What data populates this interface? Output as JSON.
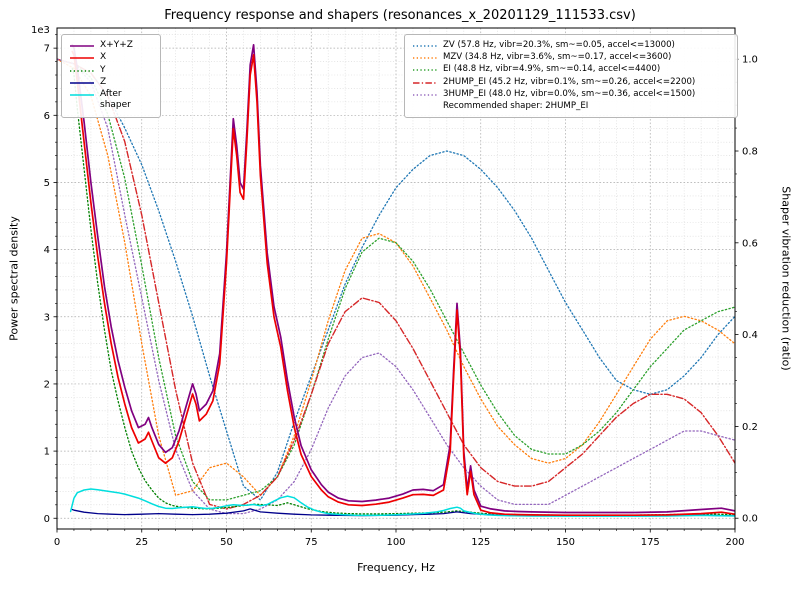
{
  "title": "Frequency response and shapers (resonances_x_20201129_111533.csv)",
  "axes": {
    "xlabel": "Frequency, Hz",
    "ylabel_left": "Power spectral density",
    "ylabel_right": "Shaper vibration reduction (ratio)",
    "offset_text": "1e3",
    "x_ticks": [
      "0",
      "25",
      "50",
      "75",
      "100",
      "125",
      "150",
      "175",
      "200"
    ],
    "y_left_ticks": [
      "0",
      "1",
      "2",
      "3",
      "4",
      "5",
      "6",
      "7"
    ],
    "y_right_ticks": [
      "0.0",
      "0.2",
      "0.4",
      "0.6",
      "0.8",
      "1.0"
    ]
  },
  "chart_data": {
    "type": "line",
    "title": "Frequency response and shapers (resonances_x_20201129_111533.csv)",
    "xlabel": "Frequency, Hz",
    "ylabel_left": "Power spectral density",
    "ylabel_right": "Shaper vibration reduction (ratio)",
    "xlim": [
      0,
      200
    ],
    "ylim_left": [
      0,
      7000
    ],
    "ylim_right": [
      0,
      1.0
    ],
    "x_major_step": 25,
    "x_minor_step": 5,
    "y_left_major": 1000,
    "y_left_minor": 200,
    "grid": "both",
    "legend_psd_position": "upper-left",
    "legend_shapers_position": "upper-right",
    "recommended_note": "Recommended shaper: 2HUMP_EI",
    "psd_series": [
      {
        "name": "xyz",
        "label": "X+Y+Z",
        "color": "#800080",
        "dash": "solid",
        "lw": 1.7,
        "x": [
          4.5,
          5,
          6,
          8,
          10,
          12,
          14,
          16,
          18,
          20,
          22,
          24,
          26,
          27,
          28,
          30,
          32,
          34,
          36,
          38,
          40,
          41,
          42,
          44,
          46,
          48,
          50,
          51,
          52,
          53,
          54,
          55,
          56,
          57,
          58,
          59,
          60,
          62,
          64,
          66,
          68,
          70,
          72,
          75,
          78,
          80,
          83,
          86,
          90,
          94,
          98,
          102,
          105,
          108,
          111,
          114,
          116,
          117,
          118,
          119,
          120,
          121,
          122,
          123,
          125,
          128,
          132,
          136,
          140,
          150,
          160,
          170,
          180,
          190,
          196,
          200
        ],
        "y": [
          7050,
          7000,
          6700,
          5900,
          5000,
          4200,
          3450,
          2850,
          2350,
          1950,
          1600,
          1350,
          1400,
          1500,
          1350,
          1100,
          980,
          1050,
          1300,
          1650,
          2000,
          1850,
          1600,
          1700,
          1900,
          2450,
          3950,
          4950,
          5950,
          5550,
          5000,
          4900,
          5750,
          6750,
          7050,
          6350,
          5250,
          3950,
          3150,
          2700,
          2050,
          1500,
          1080,
          720,
          500,
          390,
          300,
          260,
          250,
          270,
          300,
          360,
          420,
          430,
          410,
          500,
          1100,
          2200,
          3200,
          2500,
          1000,
          420,
          780,
          420,
          180,
          140,
          110,
          100,
          95,
          85,
          85,
          85,
          95,
          130,
          150,
          110
        ]
      },
      {
        "name": "x",
        "label": "X",
        "color": "#ee0000",
        "dash": "solid",
        "lw": 1.7,
        "x": [
          4.5,
          5,
          6,
          8,
          10,
          12,
          14,
          16,
          18,
          20,
          22,
          24,
          26,
          27,
          28,
          30,
          32,
          34,
          36,
          38,
          40,
          41,
          42,
          44,
          46,
          48,
          50,
          51,
          52,
          53,
          54,
          55,
          56,
          57,
          58,
          59,
          60,
          62,
          64,
          66,
          68,
          70,
          72,
          75,
          78,
          80,
          83,
          86,
          90,
          94,
          98,
          102,
          105,
          108,
          111,
          114,
          116,
          117,
          118,
          119,
          120,
          121,
          122,
          123,
          125,
          128,
          132,
          136,
          140,
          150,
          160,
          170,
          180,
          190,
          196,
          200
        ],
        "y": [
          6950,
          6900,
          6500,
          5600,
          4700,
          3900,
          3200,
          2600,
          2100,
          1700,
          1350,
          1120,
          1180,
          1280,
          1150,
          900,
          820,
          900,
          1150,
          1500,
          1850,
          1700,
          1450,
          1550,
          1750,
          2300,
          3800,
          4800,
          5800,
          5400,
          4850,
          4750,
          5600,
          6600,
          6900,
          6200,
          5100,
          3800,
          3000,
          2550,
          1900,
          1350,
          950,
          620,
          420,
          320,
          240,
          200,
          190,
          210,
          240,
          300,
          350,
          355,
          340,
          420,
          1000,
          2100,
          3100,
          2400,
          900,
          350,
          700,
          350,
          120,
          80,
          60,
          55,
          50,
          45,
          45,
          45,
          50,
          70,
          90,
          60
        ]
      },
      {
        "name": "y",
        "label": "Y",
        "color": "#008000",
        "dash": "dotted",
        "lw": 1.3,
        "x": [
          4.5,
          5,
          6,
          8,
          10,
          12,
          14,
          16,
          18,
          20,
          22,
          24,
          26,
          28,
          30,
          32,
          34,
          36,
          38,
          40,
          44,
          48,
          52,
          55,
          58,
          62,
          65,
          68,
          70,
          74,
          78,
          82,
          86,
          90,
          95,
          100,
          105,
          110,
          114,
          118,
          122,
          126,
          130,
          140,
          150,
          160,
          170,
          180,
          190,
          200
        ],
        "y": [
          6700,
          6600,
          6100,
          5200,
          4300,
          3500,
          2800,
          2200,
          1750,
          1350,
          1000,
          750,
          560,
          420,
          300,
          230,
          190,
          170,
          160,
          150,
          140,
          150,
          170,
          190,
          210,
          200,
          190,
          230,
          200,
          140,
          100,
          80,
          70,
          65,
          65,
          70,
          75,
          80,
          90,
          110,
          90,
          70,
          60,
          50,
          45,
          45,
          45,
          55,
          65,
          55
        ]
      },
      {
        "name": "z",
        "label": "Z",
        "color": "#00008b",
        "dash": "solid",
        "lw": 1.3,
        "x": [
          4.5,
          5,
          8,
          12,
          16,
          20,
          25,
          30,
          35,
          40,
          45,
          50,
          55,
          57,
          60,
          65,
          70,
          75,
          80,
          90,
          100,
          105,
          110,
          114,
          118,
          122,
          130,
          140,
          150,
          160,
          170,
          180,
          190,
          200
        ],
        "y": [
          130,
          120,
          90,
          70,
          60,
          55,
          60,
          70,
          60,
          55,
          60,
          75,
          110,
          140,
          95,
          75,
          60,
          50,
          45,
          40,
          45,
          55,
          60,
          70,
          95,
          70,
          45,
          35,
          35,
          35,
          35,
          35,
          45,
          35
        ]
      },
      {
        "name": "after_shaper",
        "label": "After shaper",
        "color": "#00dede",
        "dash": "solid",
        "lw": 1.5,
        "x": [
          4,
          5,
          6,
          8,
          10,
          12,
          14,
          16,
          18,
          20,
          22,
          24,
          26,
          28,
          30,
          32,
          34,
          36,
          38,
          40,
          42,
          44,
          46,
          48,
          50,
          52,
          54,
          56,
          58,
          60,
          62,
          64,
          66,
          68,
          70,
          72,
          74,
          76,
          78,
          80,
          84,
          88,
          92,
          96,
          100,
          104,
          108,
          112,
          114,
          116,
          118,
          119,
          120,
          122,
          124,
          127,
          130,
          135,
          140,
          150,
          160,
          170,
          180,
          190,
          200
        ],
        "y": [
          100,
          300,
          380,
          420,
          435,
          425,
          410,
          395,
          380,
          360,
          330,
          300,
          260,
          215,
          175,
          150,
          145,
          155,
          165,
          170,
          155,
          145,
          150,
          165,
          185,
          200,
          195,
          195,
          205,
          185,
          205,
          255,
          305,
          330,
          305,
          230,
          165,
          120,
          90,
          70,
          55,
          45,
          42,
          45,
          52,
          62,
          72,
          95,
          115,
          145,
          165,
          150,
          110,
          85,
          65,
          50,
          42,
          36,
          33,
          32,
          32,
          32,
          33,
          42,
          33
        ]
      }
    ],
    "shaper_x": [
      0,
      5,
      10,
      15,
      20,
      25,
      30,
      35,
      40,
      45,
      50,
      55,
      60,
      65,
      70,
      75,
      80,
      85,
      90,
      95,
      100,
      105,
      110,
      115,
      120,
      125,
      130,
      135,
      140,
      145,
      150,
      155,
      160,
      165,
      170,
      175,
      180,
      185,
      190,
      195,
      200
    ],
    "shaper_series": [
      {
        "name": "ZV",
        "label": "ZV (57.8 Hz, vibr=20.3%, sm~=0.05, accel<=13000)",
        "color": "#1f77b4",
        "dash": "dotted",
        "lw": 1.3,
        "values": [
          1.0,
          0.99,
          0.97,
          0.92,
          0.85,
          0.77,
          0.67,
          0.56,
          0.44,
          0.31,
          0.19,
          0.07,
          0.04,
          0.1,
          0.21,
          0.31,
          0.41,
          0.51,
          0.59,
          0.66,
          0.72,
          0.76,
          0.79,
          0.8,
          0.79,
          0.76,
          0.72,
          0.67,
          0.61,
          0.54,
          0.47,
          0.41,
          0.35,
          0.3,
          0.28,
          0.27,
          0.28,
          0.31,
          0.35,
          0.4,
          0.44
        ]
      },
      {
        "name": "MZV",
        "label": "MZV (34.8 Hz, vibr=3.6%, sm~=0.17, accel<=3600)",
        "color": "#ff7f0e",
        "dash": "dotted",
        "lw": 1.3,
        "values": [
          1.0,
          0.98,
          0.92,
          0.79,
          0.6,
          0.38,
          0.18,
          0.05,
          0.06,
          0.11,
          0.12,
          0.09,
          0.05,
          0.09,
          0.18,
          0.3,
          0.43,
          0.54,
          0.61,
          0.62,
          0.6,
          0.55,
          0.48,
          0.41,
          0.33,
          0.26,
          0.2,
          0.16,
          0.13,
          0.12,
          0.13,
          0.16,
          0.21,
          0.27,
          0.33,
          0.39,
          0.43,
          0.44,
          0.43,
          0.41,
          0.38
        ]
      },
      {
        "name": "EI",
        "label": "EI (48.8 Hz, vibr=4.9%, sm~=0.14, accel<=4400)",
        "color": "#2ca02c",
        "dash": "dotted",
        "lw": 1.3,
        "values": [
          1.0,
          0.99,
          0.96,
          0.88,
          0.74,
          0.55,
          0.35,
          0.18,
          0.08,
          0.04,
          0.04,
          0.05,
          0.06,
          0.09,
          0.16,
          0.27,
          0.39,
          0.5,
          0.58,
          0.61,
          0.6,
          0.56,
          0.5,
          0.43,
          0.36,
          0.29,
          0.23,
          0.18,
          0.15,
          0.14,
          0.14,
          0.16,
          0.19,
          0.23,
          0.28,
          0.33,
          0.37,
          0.41,
          0.43,
          0.45,
          0.46
        ]
      },
      {
        "name": "2HUMP_EI",
        "label": "2HUMP_EI (45.2 Hz, vibr=0.1%, sm~=0.26, accel<=2200)",
        "color": "#d62728",
        "dash": "dashdot",
        "lw": 1.4,
        "values": [
          1.0,
          0.99,
          0.97,
          0.92,
          0.82,
          0.66,
          0.47,
          0.28,
          0.12,
          0.03,
          0.02,
          0.03,
          0.05,
          0.09,
          0.17,
          0.27,
          0.38,
          0.45,
          0.48,
          0.47,
          0.43,
          0.37,
          0.3,
          0.23,
          0.16,
          0.11,
          0.08,
          0.07,
          0.07,
          0.08,
          0.11,
          0.14,
          0.18,
          0.22,
          0.25,
          0.27,
          0.27,
          0.26,
          0.23,
          0.18,
          0.12
        ]
      },
      {
        "name": "3HUMP_EI",
        "label": "3HUMP_EI (48.0 Hz, vibr=0.0%, sm~=0.36, accel<=1500)",
        "color": "#9467bd",
        "dash": "dotted",
        "lw": 1.3,
        "values": [
          1.0,
          0.99,
          0.95,
          0.85,
          0.66,
          0.48,
          0.3,
          0.15,
          0.06,
          0.02,
          0.01,
          0.01,
          0.02,
          0.04,
          0.08,
          0.15,
          0.24,
          0.31,
          0.35,
          0.36,
          0.33,
          0.28,
          0.22,
          0.16,
          0.11,
          0.07,
          0.04,
          0.03,
          0.03,
          0.03,
          0.05,
          0.07,
          0.09,
          0.11,
          0.13,
          0.15,
          0.17,
          0.19,
          0.19,
          0.18,
          0.17
        ]
      }
    ]
  }
}
